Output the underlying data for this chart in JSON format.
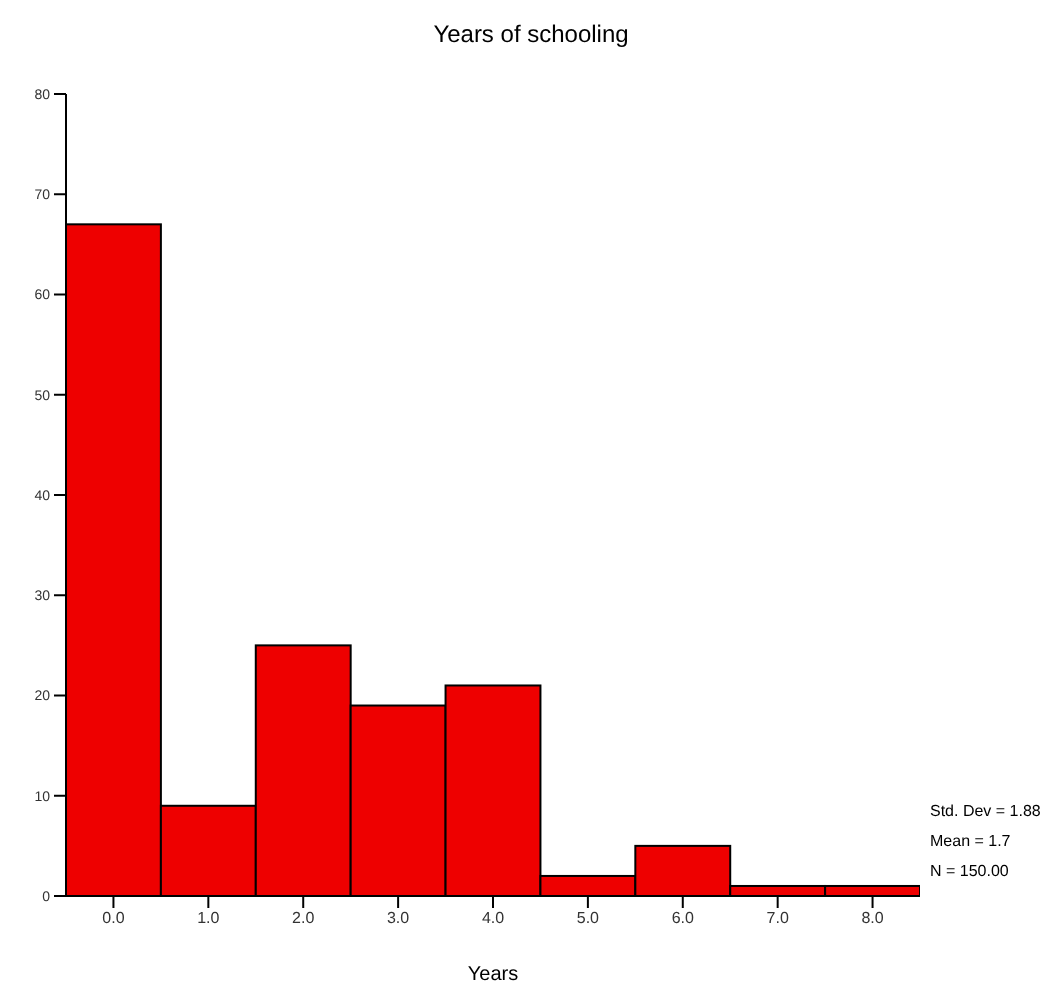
{
  "chart_data": {
    "type": "histogram",
    "title": "Years of schooling",
    "xlabel": "Years",
    "bins": [
      -0.5,
      0.5,
      1.5,
      2.5,
      3.5,
      4.5,
      5.5,
      6.5,
      7.5,
      8.5
    ],
    "values": [
      67,
      9,
      25,
      19,
      21,
      2,
      5,
      1,
      1
    ],
    "color": "#ee0000",
    "xlim": [
      -0.5,
      8.5
    ],
    "xticks": [
      {
        "value": 0,
        "label": "0.0"
      },
      {
        "value": 1,
        "label": "1.0"
      },
      {
        "value": 2,
        "label": "2.0"
      },
      {
        "value": 3,
        "label": "3.0"
      },
      {
        "value": 4,
        "label": "4.0"
      },
      {
        "value": 5,
        "label": "5.0"
      },
      {
        "value": 6,
        "label": "6.0"
      },
      {
        "value": 7,
        "label": "7.0"
      },
      {
        "value": 8,
        "label": "8.0"
      }
    ],
    "ylim": [
      0,
      80
    ],
    "yticks": [
      0,
      10,
      20,
      30,
      40,
      50,
      60,
      70,
      80
    ],
    "grid": false,
    "annotations": [
      "Std. Dev = 1.88",
      "Mean = 1.7",
      "N = 150.00"
    ]
  }
}
